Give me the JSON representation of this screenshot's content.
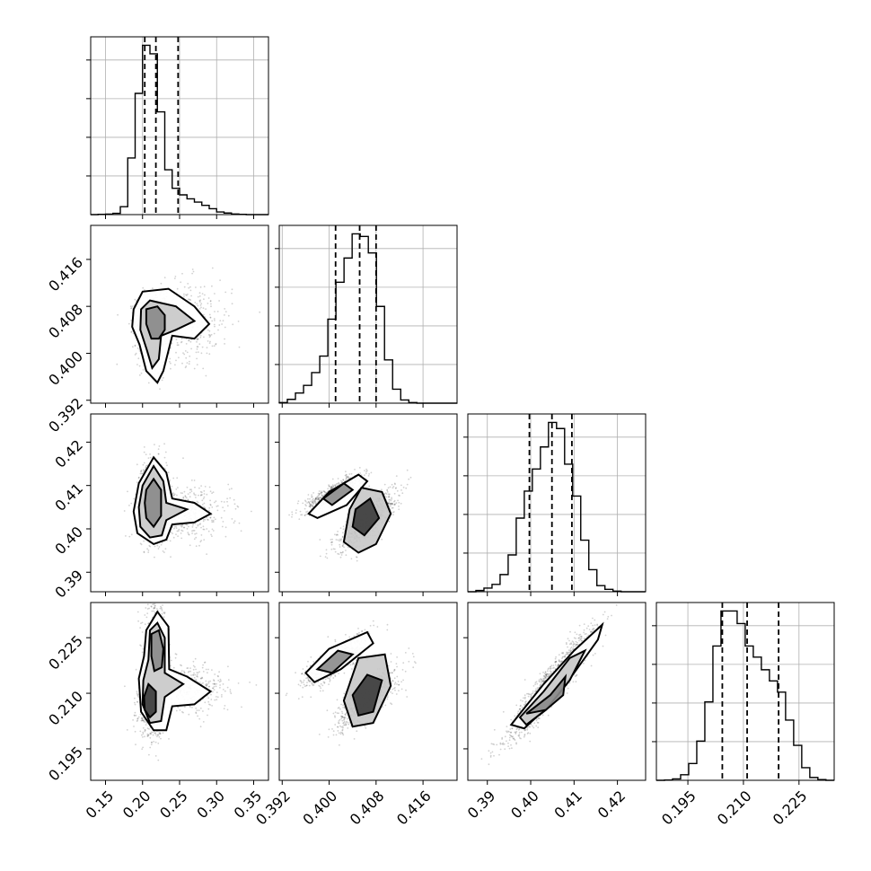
{
  "chart_data": {
    "type": "corner",
    "n_params": 4,
    "params": [
      {
        "range": [
          0.13,
          0.37
        ],
        "ticks": [
          0.15,
          0.2,
          0.25,
          0.3,
          0.35
        ],
        "tick_labels": [
          "0.15",
          "0.20",
          "0.25",
          "0.30",
          "0.35"
        ],
        "quantiles": [
          0.203,
          0.218,
          0.248
        ],
        "histogram": {
          "edges": [
            0.13,
            0.14,
            0.15,
            0.16,
            0.17,
            0.18,
            0.19,
            0.2,
            0.21,
            0.22,
            0.23,
            0.24,
            0.25,
            0.26,
            0.27,
            0.28,
            0.29,
            0.3,
            0.31,
            0.32,
            0.33,
            0.34,
            0.35,
            0.36,
            0.37
          ],
          "counts": [
            0,
            2,
            4,
            10,
            60,
            430,
            920,
            1285,
            1220,
            780,
            340,
            200,
            150,
            120,
            95,
            70,
            45,
            20,
            12,
            5,
            2,
            0,
            0,
            0
          ]
        }
      },
      {
        "range": [
          0.3915,
          0.4218
        ],
        "ticks": [
          0.392,
          0.4,
          0.408,
          0.416
        ],
        "tick_labels": [
          "0.392",
          "0.400",
          "0.408",
          "0.416"
        ],
        "quantiles": [
          0.4011,
          0.4052,
          0.408
        ],
        "histogram": {
          "edges": [
            0.3915,
            0.39288,
            0.39426,
            0.39564,
            0.39702,
            0.3984,
            0.39978,
            0.40116,
            0.40254,
            0.40392,
            0.4053,
            0.40668,
            0.40806,
            0.40944,
            0.41082,
            0.4122,
            0.41358,
            0.41496,
            0.41634,
            0.41772,
            0.4191,
            0.42048,
            0.42186
          ],
          "counts": [
            5,
            30,
            80,
            140,
            240,
            370,
            660,
            950,
            1140,
            1330,
            1310,
            1180,
            760,
            340,
            110,
            25,
            5,
            0,
            0,
            0,
            0,
            0
          ]
        }
      },
      {
        "range": [
          0.3855,
          0.4265
        ],
        "ticks": [
          0.39,
          0.4,
          0.41,
          0.42
        ],
        "tick_labels": [
          "0.39",
          "0.40",
          "0.41",
          "0.42"
        ],
        "quantiles": [
          0.3997,
          0.4049,
          0.4095
        ],
        "histogram": {
          "edges": [
            0.3855,
            0.38736,
            0.38922,
            0.39108,
            0.39294,
            0.3948,
            0.39666,
            0.39852,
            0.40038,
            0.40224,
            0.4041,
            0.40596,
            0.40782,
            0.40968,
            0.41154,
            0.4134,
            0.41526,
            0.41712,
            0.41898,
            0.42084,
            0.4227,
            0.42456,
            0.42642
          ],
          "counts": [
            0,
            10,
            30,
            60,
            140,
            300,
            600,
            820,
            1000,
            1180,
            1380,
            1330,
            1040,
            780,
            420,
            180,
            50,
            20,
            5,
            0,
            0,
            0
          ]
        }
      },
      {
        "range": [
          0.1865,
          0.2345
        ],
        "ticks": [
          0.195,
          0.21,
          0.225
        ],
        "tick_labels": [
          "0.195",
          "0.210",
          "0.225"
        ],
        "quantiles": [
          0.2043,
          0.211,
          0.2195
        ],
        "histogram": {
          "edges": [
            0.1865,
            0.18868,
            0.19086,
            0.19304,
            0.19522,
            0.1974,
            0.19958,
            0.20176,
            0.20394,
            0.20612,
            0.2083,
            0.21048,
            0.21266,
            0.21484,
            0.21702,
            0.2192,
            0.22138,
            0.22356,
            0.22574,
            0.22792,
            0.2301,
            0.23228,
            0.23446
          ],
          "counts": [
            0,
            2,
            10,
            40,
            120,
            280,
            560,
            960,
            1210,
            1210,
            1120,
            960,
            880,
            790,
            710,
            630,
            430,
            250,
            90,
            20,
            5,
            0
          ]
        }
      }
    ],
    "pairs": [
      {
        "ix": 0,
        "iy": 1,
        "clusters": [
          {
            "cx": 0.215,
            "cy": 0.4055,
            "sx": 0.012,
            "sy": 0.0022,
            "rho": 0,
            "w": 0.6
          },
          {
            "cx": 0.215,
            "cy": 0.4005,
            "sx": 0.009,
            "sy": 0.0025,
            "rho": 0,
            "w": 0.15
          },
          {
            "cx": 0.262,
            "cy": 0.4055,
            "sx": 0.03,
            "sy": 0.0035,
            "rho": 0,
            "w": 0.25
          }
        ],
        "contours": [
          [
            [
              0.188,
              0.4075
            ],
            [
              0.2,
              0.4105
            ],
            [
              0.235,
              0.411
            ],
            [
              0.27,
              0.408
            ],
            [
              0.29,
              0.405
            ],
            [
              0.27,
              0.4025
            ],
            [
              0.24,
              0.403
            ],
            [
              0.228,
              0.397
            ],
            [
              0.22,
              0.395
            ],
            [
              0.205,
              0.397
            ],
            [
              0.196,
              0.4015
            ],
            [
              0.186,
              0.4045
            ]
          ],
          [
            [
              0.198,
              0.4075
            ],
            [
              0.21,
              0.409
            ],
            [
              0.245,
              0.408
            ],
            [
              0.27,
              0.4055
            ],
            [
              0.245,
              0.404
            ],
            [
              0.225,
              0.403
            ],
            [
              0.222,
              0.399
            ],
            [
              0.213,
              0.3975
            ],
            [
              0.206,
              0.4005
            ],
            [
              0.197,
              0.404
            ]
          ],
          [
            [
              0.205,
              0.4075
            ],
            [
              0.22,
              0.408
            ],
            [
              0.23,
              0.4065
            ],
            [
              0.23,
              0.404
            ],
            [
              0.222,
              0.4025
            ],
            [
              0.212,
              0.4025
            ],
            [
              0.205,
              0.405
            ]
          ]
        ]
      },
      {
        "ix": 0,
        "iy": 2,
        "clusters": [
          {
            "cx": 0.215,
            "cy": 0.4065,
            "sx": 0.011,
            "sy": 0.0045,
            "rho": 0,
            "w": 0.7
          },
          {
            "cx": 0.262,
            "cy": 0.4035,
            "sx": 0.028,
            "sy": 0.003,
            "rho": 0,
            "w": 0.3
          }
        ],
        "contours": [
          [
            [
              0.195,
              0.4105
            ],
            [
              0.215,
              0.4165
            ],
            [
              0.232,
              0.413
            ],
            [
              0.24,
              0.407
            ],
            [
              0.27,
              0.406
            ],
            [
              0.292,
              0.4035
            ],
            [
              0.27,
              0.4015
            ],
            [
              0.24,
              0.401
            ],
            [
              0.232,
              0.3975
            ],
            [
              0.215,
              0.3965
            ],
            [
              0.193,
              0.399
            ],
            [
              0.188,
              0.404
            ]
          ],
          [
            [
              0.2,
              0.41
            ],
            [
              0.215,
              0.4145
            ],
            [
              0.228,
              0.411
            ],
            [
              0.232,
              0.406
            ],
            [
              0.26,
              0.4045
            ],
            [
              0.232,
              0.402
            ],
            [
              0.226,
              0.3985
            ],
            [
              0.21,
              0.398
            ],
            [
              0.197,
              0.4005
            ],
            [
              0.195,
              0.405
            ]
          ],
          [
            [
              0.205,
              0.409
            ],
            [
              0.215,
              0.4115
            ],
            [
              0.225,
              0.409
            ],
            [
              0.225,
              0.403
            ],
            [
              0.215,
              0.4005
            ],
            [
              0.205,
              0.4025
            ],
            [
              0.203,
              0.406
            ]
          ]
        ]
      },
      {
        "ix": 0,
        "iy": 3,
        "clusters": [
          {
            "cx": 0.218,
            "cy": 0.222,
            "sx": 0.008,
            "sy": 0.006,
            "rho": 0,
            "w": 0.35
          },
          {
            "cx": 0.212,
            "cy": 0.206,
            "sx": 0.009,
            "sy": 0.004,
            "rho": 0,
            "w": 0.4
          },
          {
            "cx": 0.262,
            "cy": 0.211,
            "sx": 0.028,
            "sy": 0.0035,
            "rho": 0,
            "w": 0.25
          }
        ],
        "contours": [
          [
            [
              0.205,
              0.227
            ],
            [
              0.22,
              0.232
            ],
            [
              0.235,
              0.228
            ],
            [
              0.236,
              0.2165
            ],
            [
              0.26,
              0.2145
            ],
            [
              0.292,
              0.2105
            ],
            [
              0.27,
              0.207
            ],
            [
              0.24,
              0.2065
            ],
            [
              0.232,
              0.2
            ],
            [
              0.215,
              0.2
            ],
            [
              0.198,
              0.205
            ],
            [
              0.195,
              0.214
            ],
            [
              0.202,
              0.22
            ]
          ],
          [
            [
              0.21,
              0.227
            ],
            [
              0.22,
              0.229
            ],
            [
              0.23,
              0.225
            ],
            [
              0.23,
              0.2155
            ],
            [
              0.255,
              0.2125
            ],
            [
              0.23,
              0.209
            ],
            [
              0.225,
              0.2025
            ],
            [
              0.21,
              0.202
            ],
            [
              0.2,
              0.207
            ],
            [
              0.201,
              0.2135
            ],
            [
              0.208,
              0.219
            ]
          ],
          [
            [
              0.212,
              0.226
            ],
            [
              0.222,
              0.227
            ],
            [
              0.228,
              0.222
            ],
            [
              0.226,
              0.217
            ],
            [
              0.216,
              0.216
            ],
            [
              0.212,
              0.22
            ]
          ],
          [
            [
              0.202,
              0.209
            ],
            [
              0.208,
              0.2125
            ],
            [
              0.218,
              0.2105
            ],
            [
              0.218,
              0.205
            ],
            [
              0.21,
              0.2035
            ],
            [
              0.203,
              0.2055
            ]
          ]
        ]
      },
      {
        "ix": 1,
        "iy": 2,
        "clusters": [
          {
            "cx": 0.401,
            "cy": 0.4085,
            "sx": 0.0025,
            "sy": 0.002,
            "rho": 0.85,
            "w": 0.45
          },
          {
            "cx": 0.4065,
            "cy": 0.402,
            "sx": 0.0025,
            "sy": 0.0035,
            "rho": 0.8,
            "w": 0.55
          }
        ],
        "contours": [
          [
            [
              0.3965,
              0.4035
            ],
            [
              0.4,
              0.4085
            ],
            [
              0.405,
              0.4125
            ],
            [
              0.4065,
              0.411
            ],
            [
              0.403,
              0.4055
            ],
            [
              0.398,
              0.4025
            ]
          ],
          [
            [
              0.4035,
              0.4045
            ],
            [
              0.4055,
              0.4095
            ],
            [
              0.409,
              0.4085
            ],
            [
              0.4105,
              0.4035
            ],
            [
              0.408,
              0.3965
            ],
            [
              0.405,
              0.3945
            ],
            [
              0.4025,
              0.397
            ]
          ],
          [
            [
              0.399,
              0.407
            ],
            [
              0.4025,
              0.4105
            ],
            [
              0.404,
              0.409
            ],
            [
              0.4005,
              0.4055
            ]
          ],
          [
            [
              0.4045,
              0.4045
            ],
            [
              0.407,
              0.407
            ],
            [
              0.4085,
              0.4025
            ],
            [
              0.406,
              0.3985
            ],
            [
              0.404,
              0.4005
            ]
          ]
        ]
      },
      {
        "ix": 1,
        "iy": 3,
        "clusters": [
          {
            "cx": 0.401,
            "cy": 0.2185,
            "sx": 0.0028,
            "sy": 0.0035,
            "rho": 0.8,
            "w": 0.45
          },
          {
            "cx": 0.4065,
            "cy": 0.2085,
            "sx": 0.0025,
            "sy": 0.004,
            "rho": 0.75,
            "w": 0.55
          }
        ],
        "contours": [
          [
            [
              0.396,
              0.2155
            ],
            [
              0.4,
              0.222
            ],
            [
              0.4065,
              0.2265
            ],
            [
              0.4075,
              0.2235
            ],
            [
              0.402,
              0.2165
            ],
            [
              0.3975,
              0.213
            ]
          ],
          [
            [
              0.4025,
              0.208
            ],
            [
              0.405,
              0.2195
            ],
            [
              0.4095,
              0.2205
            ],
            [
              0.4105,
              0.212
            ],
            [
              0.4075,
              0.202
            ],
            [
              0.404,
              0.201
            ]
          ],
          [
            [
              0.398,
              0.2165
            ],
            [
              0.4015,
              0.2215
            ],
            [
              0.404,
              0.2205
            ],
            [
              0.4005,
              0.2155
            ]
          ],
          [
            [
              0.404,
              0.2095
            ],
            [
              0.4065,
              0.215
            ],
            [
              0.409,
              0.2135
            ],
            [
              0.4075,
              0.205
            ],
            [
              0.405,
              0.204
            ]
          ]
        ]
      },
      {
        "ix": 2,
        "iy": 3,
        "clusters": [
          {
            "cx": 0.4045,
            "cy": 0.212,
            "sx": 0.005,
            "sy": 0.0075,
            "rho": 0.94,
            "w": 1
          }
        ],
        "contours": [
          [
            [
              0.3955,
              0.2015
            ],
            [
              0.3975,
              0.2045
            ],
            [
              0.403,
              0.2125
            ],
            [
              0.41,
              0.2215
            ],
            [
              0.4165,
              0.2285
            ],
            [
              0.4155,
              0.2245
            ],
            [
              0.41,
              0.2155
            ],
            [
              0.404,
              0.2065
            ],
            [
              0.3985,
              0.2005
            ]
          ],
          [
            [
              0.3975,
              0.2035
            ],
            [
              0.403,
              0.2105
            ],
            [
              0.409,
              0.2195
            ],
            [
              0.4125,
              0.2215
            ],
            [
              0.409,
              0.2135
            ],
            [
              0.4035,
              0.2055
            ],
            [
              0.399,
              0.2015
            ]
          ],
          [
            [
              0.399,
              0.2045
            ],
            [
              0.4045,
              0.2095
            ],
            [
              0.408,
              0.2145
            ],
            [
              0.4075,
              0.2095
            ],
            [
              0.4035,
              0.2055
            ]
          ]
        ]
      }
    ]
  }
}
